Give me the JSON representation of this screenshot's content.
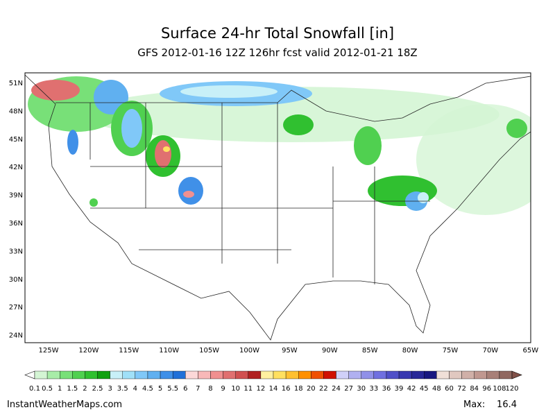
{
  "header": {
    "title": "Surface 24-hr Total Snowfall [in]",
    "subtitle": "GFS 2012-01-16 12Z 126hr fcst valid 2012-01-21 18Z"
  },
  "map": {
    "lat_labels": [
      "51N",
      "48N",
      "45N",
      "42N",
      "39N",
      "36N",
      "33N",
      "30N",
      "27N",
      "24N"
    ],
    "lon_labels": [
      "125W",
      "120W",
      "115W",
      "110W",
      "105W",
      "100W",
      "95W",
      "90W",
      "85W",
      "80W",
      "75W",
      "70W",
      "65W"
    ]
  },
  "colorbar": {
    "levels": [
      0.1,
      0.5,
      1,
      1.5,
      2,
      2.5,
      3,
      3.5,
      4,
      4.5,
      5,
      5.5,
      6,
      7,
      8,
      9,
      10,
      11,
      12,
      14,
      16,
      18,
      20,
      22,
      24,
      27,
      30,
      33,
      36,
      39,
      42,
      45,
      48,
      60,
      72,
      84,
      96,
      108,
      120
    ],
    "colors": [
      "#ffffff",
      "#d4f5d4",
      "#a8eca8",
      "#78e078",
      "#50d050",
      "#30c030",
      "#10a010",
      "#c8f0f8",
      "#a0e0f8",
      "#80c8f8",
      "#60b0f0",
      "#4090e8",
      "#2070d8",
      "#fcd8d8",
      "#f8b8b8",
      "#f09090",
      "#e07070",
      "#d05050",
      "#b02020",
      "#fff0a0",
      "#ffe060",
      "#ffc030",
      "#ff9000",
      "#f05000",
      "#d01000",
      "#d0d0f8",
      "#b0b0f0",
      "#9090e8",
      "#7070e0",
      "#5050c8",
      "#3838b0",
      "#282898",
      "#181880",
      "#f0e0d8",
      "#e0c8c0",
      "#d0b0a8",
      "#c09890",
      "#a88078",
      "#906860",
      "#805048"
    ]
  },
  "footer": {
    "site": "InstantWeatherMaps.com",
    "max_label": "Max:",
    "max_value": 16.4
  }
}
